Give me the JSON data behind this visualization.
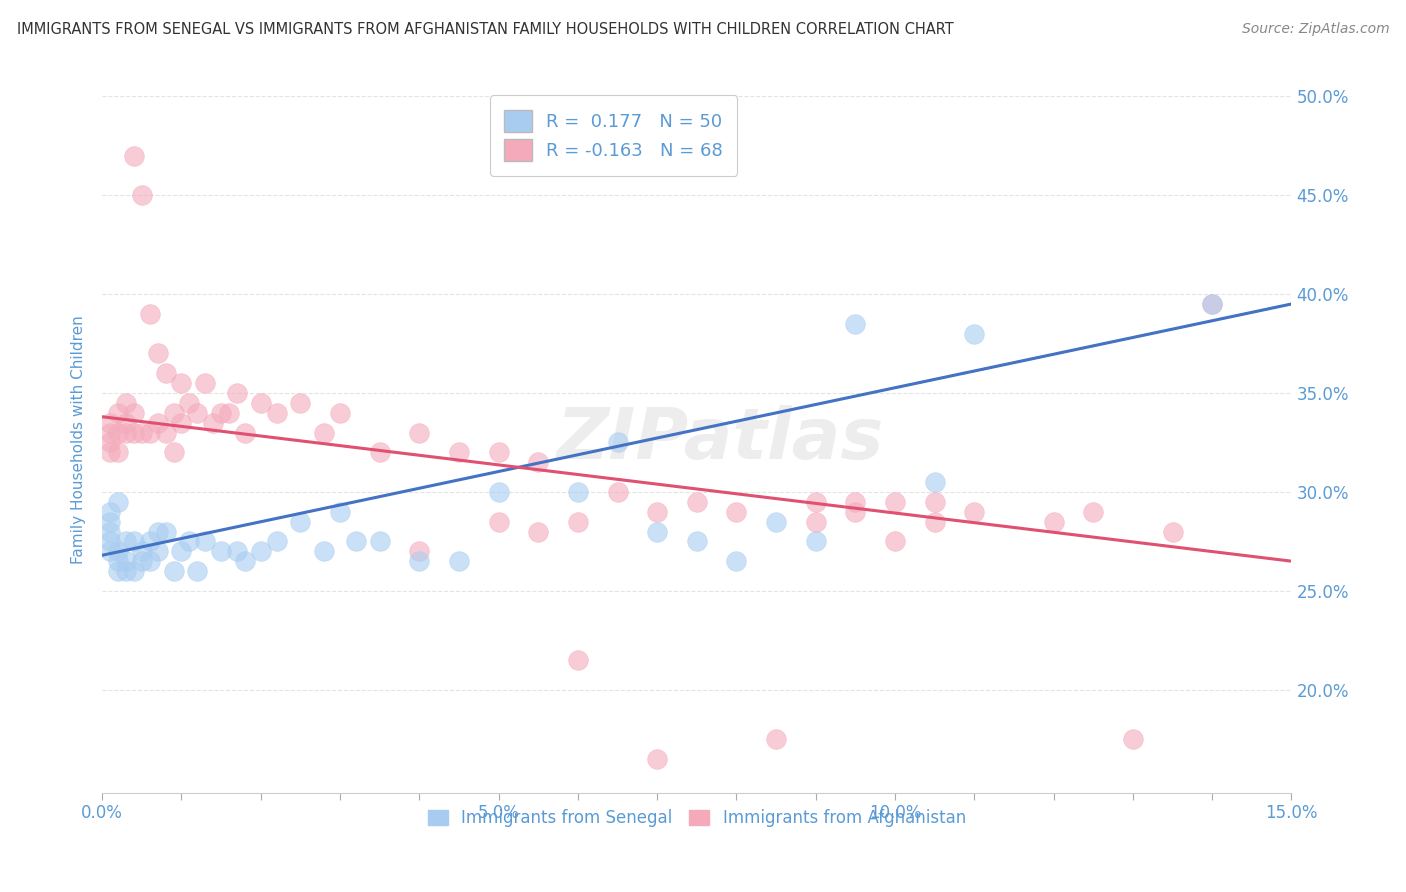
{
  "title": "IMMIGRANTS FROM SENEGAL VS IMMIGRANTS FROM AFGHANISTAN FAMILY HOUSEHOLDS WITH CHILDREN CORRELATION CHART",
  "source": "Source: ZipAtlas.com",
  "ylabel": "Family Households with Children",
  "xlim": [
    0.0,
    0.15
  ],
  "ylim": [
    0.148,
    0.505
  ],
  "ytick_positions": [
    0.2,
    0.25,
    0.3,
    0.35,
    0.4,
    0.45,
    0.5
  ],
  "ytick_labels": [
    "20.0%",
    "25.0%",
    "30.0%",
    "35.0%",
    "40.0%",
    "45.0%",
    "50.0%"
  ],
  "xtick_positions": [
    0.0,
    0.01,
    0.02,
    0.03,
    0.04,
    0.05,
    0.06,
    0.07,
    0.08,
    0.09,
    0.1,
    0.11,
    0.12,
    0.13,
    0.14,
    0.15
  ],
  "xtick_labels_show": {
    "0": "0.0%",
    "5": "5.0%",
    "10": "10.0%",
    "15": "15.0%"
  },
  "senegal_color": "#A8CCF0",
  "afghanistan_color": "#F4AABB",
  "senegal_line_color": "#4472C4",
  "afghanistan_line_color": "#E05070",
  "R_senegal": 0.177,
  "N_senegal": 50,
  "R_afghanistan": -0.163,
  "N_afghanistan": 68,
  "background_color": "#FFFFFF",
  "grid_color": "#DDDDDD",
  "legend_label_senegal": "Immigrants from Senegal",
  "legend_label_afghanistan": "Immigrants from Afghanistan",
  "title_color": "#333333",
  "source_color": "#888888",
  "axis_label_color": "#5B9BD5",
  "tick_color": "#5B9BD5",
  "watermark": "ZIPatlas",
  "senegal_x": [
    0.001,
    0.001,
    0.001,
    0.001,
    0.001,
    0.002,
    0.002,
    0.002,
    0.002,
    0.003,
    0.003,
    0.003,
    0.004,
    0.004,
    0.005,
    0.005,
    0.006,
    0.006,
    0.007,
    0.007,
    0.008,
    0.009,
    0.01,
    0.011,
    0.012,
    0.013,
    0.015,
    0.017,
    0.018,
    0.02,
    0.022,
    0.025,
    0.028,
    0.03,
    0.032,
    0.035,
    0.04,
    0.045,
    0.05,
    0.06,
    0.065,
    0.07,
    0.075,
    0.08,
    0.085,
    0.09,
    0.095,
    0.105,
    0.11,
    0.14
  ],
  "senegal_y": [
    0.285,
    0.29,
    0.27,
    0.275,
    0.28,
    0.295,
    0.27,
    0.265,
    0.26,
    0.265,
    0.275,
    0.26,
    0.275,
    0.26,
    0.27,
    0.265,
    0.275,
    0.265,
    0.27,
    0.28,
    0.28,
    0.26,
    0.27,
    0.275,
    0.26,
    0.275,
    0.27,
    0.27,
    0.265,
    0.27,
    0.275,
    0.285,
    0.27,
    0.29,
    0.275,
    0.275,
    0.265,
    0.265,
    0.3,
    0.3,
    0.325,
    0.28,
    0.275,
    0.265,
    0.285,
    0.275,
    0.385,
    0.305,
    0.38,
    0.395
  ],
  "afghanistan_x": [
    0.001,
    0.001,
    0.001,
    0.001,
    0.002,
    0.002,
    0.002,
    0.003,
    0.003,
    0.003,
    0.004,
    0.004,
    0.004,
    0.005,
    0.005,
    0.006,
    0.006,
    0.007,
    0.007,
    0.008,
    0.008,
    0.009,
    0.009,
    0.01,
    0.01,
    0.011,
    0.012,
    0.013,
    0.014,
    0.015,
    0.016,
    0.017,
    0.018,
    0.02,
    0.022,
    0.025,
    0.028,
    0.03,
    0.035,
    0.04,
    0.045,
    0.05,
    0.055,
    0.06,
    0.065,
    0.07,
    0.075,
    0.08,
    0.085,
    0.09,
    0.095,
    0.1,
    0.105,
    0.11,
    0.12,
    0.125,
    0.13,
    0.135,
    0.04,
    0.05,
    0.055,
    0.06,
    0.07,
    0.09,
    0.095,
    0.1,
    0.105,
    0.14
  ],
  "afghanistan_y": [
    0.33,
    0.335,
    0.325,
    0.32,
    0.34,
    0.33,
    0.32,
    0.345,
    0.33,
    0.335,
    0.47,
    0.34,
    0.33,
    0.45,
    0.33,
    0.39,
    0.33,
    0.37,
    0.335,
    0.36,
    0.33,
    0.34,
    0.32,
    0.355,
    0.335,
    0.345,
    0.34,
    0.355,
    0.335,
    0.34,
    0.34,
    0.35,
    0.33,
    0.345,
    0.34,
    0.345,
    0.33,
    0.34,
    0.32,
    0.33,
    0.32,
    0.32,
    0.315,
    0.285,
    0.3,
    0.29,
    0.295,
    0.29,
    0.175,
    0.285,
    0.29,
    0.295,
    0.285,
    0.29,
    0.285,
    0.29,
    0.175,
    0.28,
    0.27,
    0.285,
    0.28,
    0.215,
    0.165,
    0.295,
    0.295,
    0.275,
    0.295,
    0.395
  ],
  "senegal_trend_x": [
    0.0,
    0.15
  ],
  "senegal_trend_y": [
    0.268,
    0.395
  ],
  "afghanistan_trend_x": [
    0.0,
    0.15
  ],
  "afghanistan_trend_y": [
    0.338,
    0.265
  ]
}
